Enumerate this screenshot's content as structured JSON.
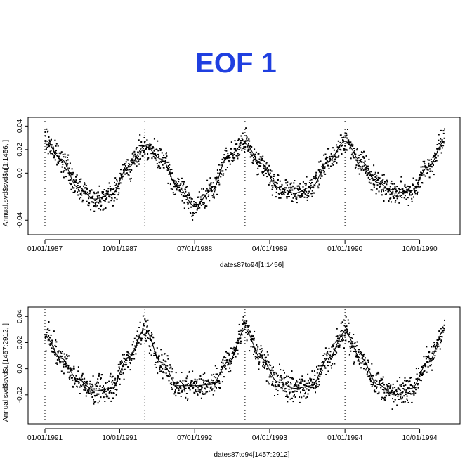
{
  "title": "EOF 1",
  "colors": {
    "title": "#1F3FE0",
    "marks": "#000000"
  },
  "chart_data": [
    {
      "type": "scatter",
      "xlabel": "dates87to94[1:1456]",
      "ylabel": "Annual.svd$svd$u[1:1456, ]",
      "x_range": [
        "1987-01-01",
        "1990-12-31"
      ],
      "ylim": [
        -0.05,
        0.045
      ],
      "x_ticks": [
        {
          "date": "1987-01-01",
          "label": "01/01/1987"
        },
        {
          "date": "1987-10-01",
          "label": "10/01/1987"
        },
        {
          "date": "1988-07-01",
          "label": "07/01/1988"
        },
        {
          "date": "1989-04-01",
          "label": "04/01/1989"
        },
        {
          "date": "1990-01-01",
          "label": "01/01/1990"
        },
        {
          "date": "1990-10-01",
          "label": "10/01/1990"
        }
      ],
      "y_ticks": [
        {
          "value": -0.04,
          "label": "-0.04"
        },
        {
          "value": 0.0,
          "label": "0.0"
        },
        {
          "value": 0.02,
          "label": "0.02"
        },
        {
          "value": 0.04,
          "label": "0.04"
        }
      ],
      "vlines": [
        "1987-01-01",
        "1988-01-01",
        "1989-01-01",
        "1990-01-01"
      ],
      "fit_series": {
        "dates": [
          "1987-01-01",
          "1987-03-01",
          "1987-05-01",
          "1987-07-01",
          "1987-09-01",
          "1987-11-01",
          "1988-01-01",
          "1988-03-01",
          "1988-05-01",
          "1988-07-01",
          "1988-09-01",
          "1988-11-01",
          "1989-01-01",
          "1989-03-01",
          "1989-05-01",
          "1989-07-01",
          "1989-09-01",
          "1989-11-01",
          "1990-01-01",
          "1990-03-01",
          "1990-05-01",
          "1990-07-01",
          "1990-09-01",
          "1990-11-01",
          "1990-12-31"
        ],
        "values": [
          0.028,
          0.012,
          -0.012,
          -0.022,
          -0.018,
          0.005,
          0.023,
          0.012,
          -0.012,
          -0.028,
          -0.015,
          0.015,
          0.025,
          0.008,
          -0.012,
          -0.017,
          -0.012,
          0.01,
          0.027,
          0.01,
          -0.008,
          -0.017,
          -0.015,
          0.005,
          0.027
        ]
      }
    },
    {
      "type": "scatter",
      "xlabel": "dates87to94[1457:2912]",
      "ylabel": "Annual.svd$svd$u[1457:2912, ]",
      "x_range": [
        "1991-01-01",
        "1994-12-31"
      ],
      "ylim": [
        -0.04,
        0.045
      ],
      "x_ticks": [
        {
          "date": "1991-01-01",
          "label": "01/01/1991"
        },
        {
          "date": "1991-10-01",
          "label": "10/01/1991"
        },
        {
          "date": "1992-07-01",
          "label": "07/01/1992"
        },
        {
          "date": "1993-04-01",
          "label": "04/01/1993"
        },
        {
          "date": "1994-01-01",
          "label": "01/01/1994"
        },
        {
          "date": "1994-10-01",
          "label": "10/01/1994"
        }
      ],
      "y_ticks": [
        {
          "value": -0.02,
          "label": "-0.02"
        },
        {
          "value": 0.0,
          "label": "0.0"
        },
        {
          "value": 0.02,
          "label": "0.02"
        },
        {
          "value": 0.04,
          "label": "0.04"
        }
      ],
      "vlines": [
        "1991-01-01",
        "1992-01-01",
        "1993-01-01",
        "1994-01-01"
      ],
      "fit_series": {
        "dates": [
          "1991-01-01",
          "1991-03-01",
          "1991-05-01",
          "1991-07-01",
          "1991-09-01",
          "1991-11-01",
          "1992-01-01",
          "1992-03-01",
          "1992-05-01",
          "1992-07-01",
          "1992-09-01",
          "1992-11-01",
          "1993-01-01",
          "1993-03-01",
          "1993-05-01",
          "1993-07-01",
          "1993-09-01",
          "1993-11-01",
          "1994-01-01",
          "1994-03-01",
          "1994-05-01",
          "1994-07-01",
          "1994-09-01",
          "1994-11-01",
          "1994-12-31"
        ],
        "values": [
          0.025,
          0.008,
          -0.008,
          -0.017,
          -0.015,
          0.008,
          0.03,
          0.005,
          -0.013,
          -0.013,
          -0.012,
          0.005,
          0.03,
          0.008,
          -0.01,
          -0.015,
          -0.013,
          0.008,
          0.028,
          0.008,
          -0.012,
          -0.02,
          -0.015,
          0.005,
          0.03
        ]
      }
    }
  ]
}
